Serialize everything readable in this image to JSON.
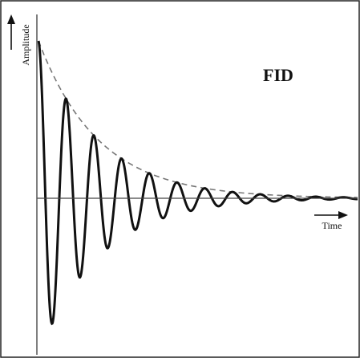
{
  "chart_data": {
    "type": "line",
    "title": "FID",
    "xlabel": "Time",
    "ylabel": "Amplitude",
    "grid": false,
    "axes_with_arrows": true,
    "series": [
      {
        "kind": "damped-oscillation",
        "style": "solid",
        "color": "#111111",
        "initial_amplitude": 1.0,
        "decay_rate": 0.46,
        "period": 1.0,
        "x_range": [
          0,
          11.5
        ]
      },
      {
        "kind": "exponential-envelope",
        "style": "dashed",
        "color": "#777777",
        "decay_rate": 0.46,
        "x_range": [
          0,
          11.5
        ]
      }
    ],
    "xlim": [
      0,
      11.5
    ],
    "ylim": [
      -1.0,
      1.0
    ]
  },
  "colors": {
    "axis": "#111111",
    "signal": "#111111",
    "envelope": "#777777",
    "border": "#222222"
  }
}
